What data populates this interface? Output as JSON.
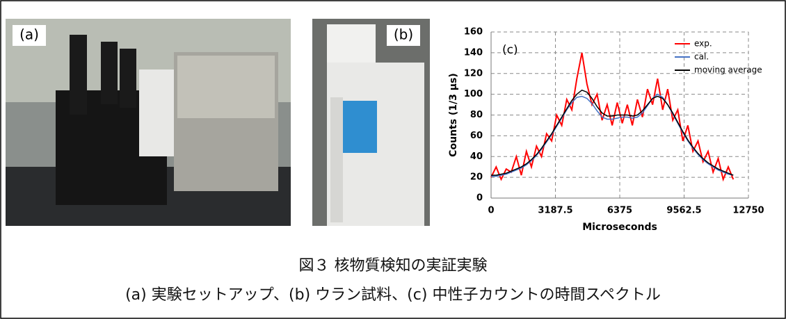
{
  "panels": {
    "a_label": "(a)",
    "b_label": "(b)"
  },
  "chart_data": {
    "type": "line",
    "annotation": "(c)",
    "x_label": "Microseconds",
    "y_label": "Counts (1/3 μs)",
    "xlim": [
      0,
      12750
    ],
    "xticks": [
      0,
      3187.5,
      6375,
      9562.5,
      12750
    ],
    "ylim": [
      0,
      160
    ],
    "yticks": [
      0,
      20,
      40,
      60,
      80,
      100,
      120,
      140,
      160
    ],
    "grid": true,
    "legend": "upper right",
    "x": [
      0,
      250,
      500,
      750,
      1000,
      1250,
      1500,
      1750,
      2000,
      2250,
      2500,
      2750,
      3000,
      3250,
      3500,
      3750,
      4000,
      4250,
      4500,
      4750,
      5000,
      5250,
      5500,
      5750,
      6000,
      6250,
      6500,
      6750,
      7000,
      7250,
      7500,
      7750,
      8000,
      8250,
      8500,
      8750,
      9000,
      9250,
      9500,
      9750,
      10000,
      10250,
      10500,
      10750,
      11000,
      11250,
      11500,
      11750,
      12000
    ],
    "series": [
      {
        "name": "exp.",
        "color": "#ff0000",
        "values": [
          20,
          30,
          18,
          28,
          25,
          40,
          22,
          45,
          30,
          50,
          40,
          62,
          55,
          80,
          70,
          95,
          85,
          115,
          140,
          110,
          90,
          100,
          75,
          90,
          70,
          92,
          72,
          90,
          70,
          95,
          78,
          105,
          90,
          115,
          85,
          105,
          75,
          85,
          55,
          70,
          45,
          55,
          35,
          45,
          25,
          38,
          18,
          30,
          18
        ]
      },
      {
        "name": "cal.",
        "color": "#4472c4",
        "values": [
          21,
          21,
          22,
          23,
          25,
          27,
          29,
          32,
          36,
          41,
          47,
          54,
          61,
          69,
          77,
          85,
          92,
          97,
          98,
          96,
          91,
          84,
          78,
          76,
          76,
          77,
          78,
          78,
          77,
          78,
          82,
          89,
          96,
          100,
          97,
          90,
          81,
          72,
          63,
          55,
          48,
          42,
          37,
          33,
          30,
          27,
          25,
          23,
          22
        ]
      },
      {
        "name": "moving average",
        "color": "#000000",
        "values": [
          22,
          22,
          23,
          24,
          26,
          28,
          30,
          33,
          37,
          42,
          48,
          55,
          62,
          70,
          78,
          86,
          94,
          100,
          104,
          102,
          96,
          88,
          82,
          79,
          79,
          80,
          80,
          80,
          79,
          80,
          84,
          90,
          96,
          98,
          96,
          90,
          82,
          73,
          64,
          56,
          49,
          43,
          38,
          34,
          31,
          28,
          26,
          24,
          22
        ]
      }
    ]
  },
  "caption": {
    "title": "図３ 核物質検知の実証実験",
    "subtitle": "(a) 実験セットアップ、(b) ウラン試料、(c) 中性子カウントの時間スペクトル"
  }
}
